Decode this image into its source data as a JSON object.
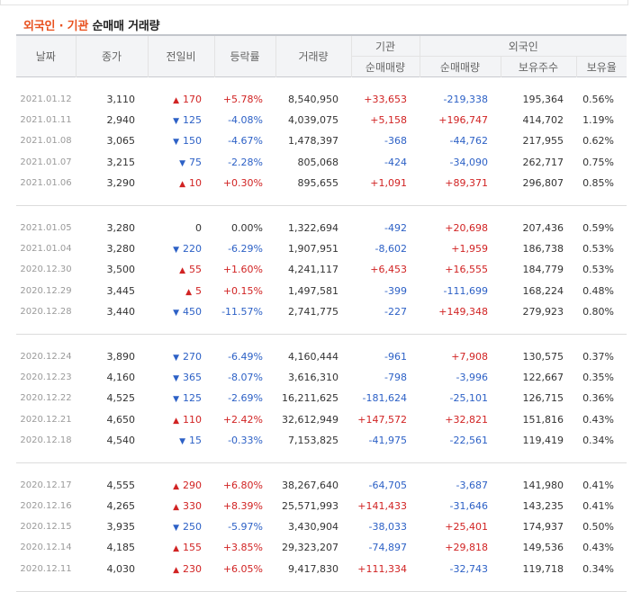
{
  "title": {
    "part1": "외국인",
    "dot": " · ",
    "part2": "기관",
    "part3": " 순매매 거래량"
  },
  "headers": {
    "date": "날짜",
    "close": "종가",
    "change": "전일비",
    "rate": "등락률",
    "volume": "거래량",
    "inst": "기관",
    "foreign": "외국인",
    "inst_net": "순매매량",
    "foreign_net": "순매매량",
    "foreign_holdings": "보유주수",
    "foreign_ratio": "보유율"
  },
  "colors": {
    "up": "#d12323",
    "down": "#2d61c6",
    "title_accent": "#e8511f"
  },
  "groups": [
    [
      {
        "date": "2021.01.12",
        "close": "3,110",
        "dir": "up",
        "change": "170",
        "rate": "+5.78%",
        "volume": "8,540,950",
        "inst": "+33,653",
        "foreign": "-219,338",
        "holdings": "195,364",
        "ratio": "0.56%"
      },
      {
        "date": "2021.01.11",
        "close": "2,940",
        "dir": "down",
        "change": "125",
        "rate": "-4.08%",
        "volume": "4,039,075",
        "inst": "+5,158",
        "foreign": "+196,747",
        "holdings": "414,702",
        "ratio": "1.19%"
      },
      {
        "date": "2021.01.08",
        "close": "3,065",
        "dir": "down",
        "change": "150",
        "rate": "-4.67%",
        "volume": "1,478,397",
        "inst": "-368",
        "foreign": "-44,762",
        "holdings": "217,955",
        "ratio": "0.62%"
      },
      {
        "date": "2021.01.07",
        "close": "3,215",
        "dir": "down",
        "change": "75",
        "rate": "-2.28%",
        "volume": "805,068",
        "inst": "-424",
        "foreign": "-34,090",
        "holdings": "262,717",
        "ratio": "0.75%"
      },
      {
        "date": "2021.01.06",
        "close": "3,290",
        "dir": "up",
        "change": "10",
        "rate": "+0.30%",
        "volume": "895,655",
        "inst": "+1,091",
        "foreign": "+89,371",
        "holdings": "296,807",
        "ratio": "0.85%"
      }
    ],
    [
      {
        "date": "2021.01.05",
        "close": "3,280",
        "dir": "none",
        "change": "0",
        "rate": "0.00%",
        "volume": "1,322,694",
        "inst": "-492",
        "foreign": "+20,698",
        "holdings": "207,436",
        "ratio": "0.59%"
      },
      {
        "date": "2021.01.04",
        "close": "3,280",
        "dir": "down",
        "change": "220",
        "rate": "-6.29%",
        "volume": "1,907,951",
        "inst": "-8,602",
        "foreign": "+1,959",
        "holdings": "186,738",
        "ratio": "0.53%"
      },
      {
        "date": "2020.12.30",
        "close": "3,500",
        "dir": "up",
        "change": "55",
        "rate": "+1.60%",
        "volume": "4,241,117",
        "inst": "+6,453",
        "foreign": "+16,555",
        "holdings": "184,779",
        "ratio": "0.53%"
      },
      {
        "date": "2020.12.29",
        "close": "3,445",
        "dir": "up",
        "change": "5",
        "rate": "+0.15%",
        "volume": "1,497,581",
        "inst": "-399",
        "foreign": "-111,699",
        "holdings": "168,224",
        "ratio": "0.48%"
      },
      {
        "date": "2020.12.28",
        "close": "3,440",
        "dir": "down",
        "change": "450",
        "rate": "-11.57%",
        "volume": "2,741,775",
        "inst": "-227",
        "foreign": "+149,348",
        "holdings": "279,923",
        "ratio": "0.80%"
      }
    ],
    [
      {
        "date": "2020.12.24",
        "close": "3,890",
        "dir": "down",
        "change": "270",
        "rate": "-6.49%",
        "volume": "4,160,444",
        "inst": "-961",
        "foreign": "+7,908",
        "holdings": "130,575",
        "ratio": "0.37%"
      },
      {
        "date": "2020.12.23",
        "close": "4,160",
        "dir": "down",
        "change": "365",
        "rate": "-8.07%",
        "volume": "3,616,310",
        "inst": "-798",
        "foreign": "-3,996",
        "holdings": "122,667",
        "ratio": "0.35%"
      },
      {
        "date": "2020.12.22",
        "close": "4,525",
        "dir": "down",
        "change": "125",
        "rate": "-2.69%",
        "volume": "16,211,625",
        "inst": "-181,624",
        "foreign": "-25,101",
        "holdings": "126,715",
        "ratio": "0.36%"
      },
      {
        "date": "2020.12.21",
        "close": "4,650",
        "dir": "up",
        "change": "110",
        "rate": "+2.42%",
        "volume": "32,612,949",
        "inst": "+147,572",
        "foreign": "+32,821",
        "holdings": "151,816",
        "ratio": "0.43%"
      },
      {
        "date": "2020.12.18",
        "close": "4,540",
        "dir": "down",
        "change": "15",
        "rate": "-0.33%",
        "volume": "7,153,825",
        "inst": "-41,975",
        "foreign": "-22,561",
        "holdings": "119,419",
        "ratio": "0.34%"
      }
    ],
    [
      {
        "date": "2020.12.17",
        "close": "4,555",
        "dir": "up",
        "change": "290",
        "rate": "+6.80%",
        "volume": "38,267,640",
        "inst": "-64,705",
        "foreign": "-3,687",
        "holdings": "141,980",
        "ratio": "0.41%"
      },
      {
        "date": "2020.12.16",
        "close": "4,265",
        "dir": "up",
        "change": "330",
        "rate": "+8.39%",
        "volume": "25,571,993",
        "inst": "+141,433",
        "foreign": "-31,646",
        "holdings": "143,235",
        "ratio": "0.41%"
      },
      {
        "date": "2020.12.15",
        "close": "3,935",
        "dir": "down",
        "change": "250",
        "rate": "-5.97%",
        "volume": "3,430,904",
        "inst": "-38,033",
        "foreign": "+25,401",
        "holdings": "174,937",
        "ratio": "0.50%"
      },
      {
        "date": "2020.12.14",
        "close": "4,185",
        "dir": "up",
        "change": "155",
        "rate": "+3.85%",
        "volume": "29,323,207",
        "inst": "-74,897",
        "foreign": "+29,818",
        "holdings": "149,536",
        "ratio": "0.43%"
      },
      {
        "date": "2020.12.11",
        "close": "4,030",
        "dir": "up",
        "change": "230",
        "rate": "+6.05%",
        "volume": "9,417,830",
        "inst": "+111,334",
        "foreign": "-32,743",
        "holdings": "119,718",
        "ratio": "0.34%"
      }
    ]
  ]
}
